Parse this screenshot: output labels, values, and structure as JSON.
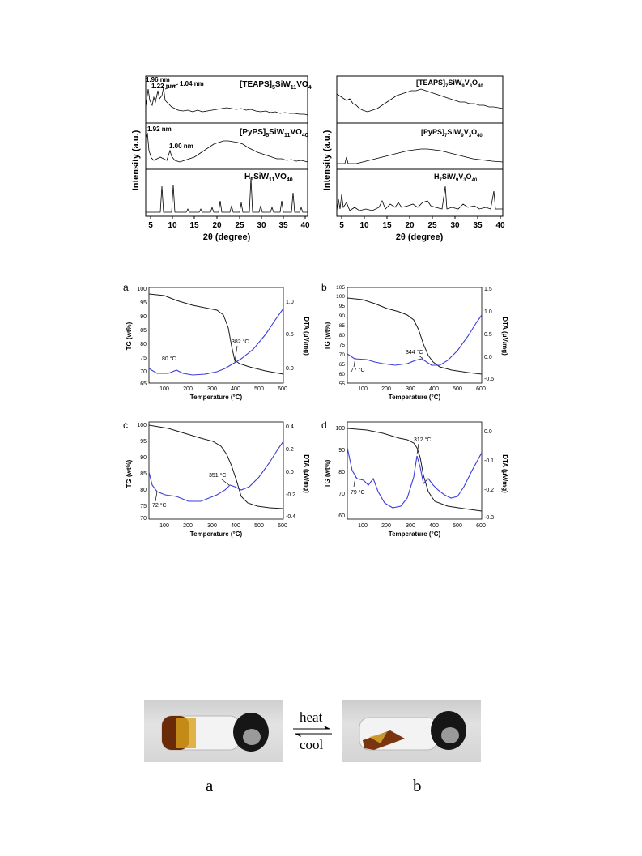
{
  "xrd": {
    "y_axis_label": "Intensity (a.u.)",
    "x_axis_label": "2θ (degree)",
    "left": {
      "x_ticks": [
        "5",
        "10",
        "15",
        "20",
        "25",
        "30",
        "35",
        "40"
      ],
      "panels": [
        {
          "label_main": "[TEAPS]",
          "label_sub1": "5",
          "label_mid": "SiW",
          "label_sub2": "11",
          "label_end": "VO",
          "label_sub3": "40",
          "annotations": [
            "1.96 nm",
            "1.22 nm",
            "1.04 nm"
          ]
        },
        {
          "label_main": "[PyPS]",
          "label_sub1": "5",
          "label_mid": "SiW",
          "label_sub2": "11",
          "label_end": "VO",
          "label_sub3": "40",
          "annotations": [
            "1.92 nm",
            "1.00 nm"
          ]
        },
        {
          "label_main": "H",
          "label_sub1": "5",
          "label_mid": "SiW",
          "label_sub2": "11",
          "label_end": "VO",
          "label_sub3": "40",
          "annotations": []
        }
      ]
    },
    "right": {
      "x_ticks": [
        "5",
        "10",
        "15",
        "20",
        "25",
        "30",
        "35",
        "40"
      ],
      "panels": [
        {
          "label_main": "[TEAPS]",
          "label_sub1": "7",
          "label_mid": "SiW",
          "label_sub2": "9",
          "label_end": "V",
          "label_sub3": "3",
          "label_end2": "O",
          "label_sub4": "40"
        },
        {
          "label_main": "[PyPS]",
          "label_sub1": "7",
          "label_mid": "SiW",
          "label_sub2": "9",
          "label_end": "V",
          "label_sub3": "3",
          "label_end2": "O",
          "label_sub4": "40"
        },
        {
          "label_main": "H",
          "label_sub1": "7",
          "label_mid": "SiW",
          "label_sub2": "9",
          "label_end": "V",
          "label_sub3": "3",
          "label_end2": "O",
          "label_sub4": "40"
        }
      ]
    }
  },
  "tga": {
    "x_axis_label": "Temperature (°C)",
    "y_left_label": "TG (wt%)",
    "y_right_label": "DTA (μV/mg)",
    "panels": [
      {
        "id": "a",
        "tg_ticks": [
          "100",
          "95",
          "90",
          "85",
          "80",
          "75",
          "70",
          "65"
        ],
        "dta_ticks": [
          "1.0",
          "0.5",
          "0.0"
        ],
        "x_ticks": [
          "100",
          "200",
          "300",
          "400",
          "500",
          "600"
        ],
        "annotations": [
          "80 °C",
          "382 °C"
        ]
      },
      {
        "id": "b",
        "tg_ticks": [
          "105",
          "100",
          "95",
          "90",
          "85",
          "80",
          "75",
          "70",
          "65",
          "60",
          "55"
        ],
        "dta_ticks": [
          "1.5",
          "1.0",
          "0.5",
          "0.0",
          "-0.5"
        ],
        "x_ticks": [
          "100",
          "200",
          "300",
          "400",
          "500",
          "600"
        ],
        "annotations": [
          "77 °C",
          "344 °C"
        ]
      },
      {
        "id": "c",
        "tg_ticks": [
          "100",
          "95",
          "90",
          "85",
          "80",
          "75",
          "70"
        ],
        "dta_ticks": [
          "0.4",
          "0.2",
          "0.0",
          "-0.2",
          "-0.4"
        ],
        "x_ticks": [
          "100",
          "200",
          "300",
          "400",
          "500",
          "600"
        ],
        "annotations": [
          "72 °C",
          "351 °C"
        ]
      },
      {
        "id": "d",
        "tg_ticks": [
          "100",
          "90",
          "80",
          "70",
          "60"
        ],
        "dta_ticks": [
          "0.0",
          "-0.1",
          "-0.2",
          "-0.3"
        ],
        "x_ticks": [
          "100",
          "200",
          "300",
          "400",
          "500",
          "600"
        ],
        "annotations": [
          "79 °C",
          "312 °C"
        ]
      }
    ],
    "colors": {
      "tg": "#1a1a1a",
      "dta": "#3b3bdc"
    }
  },
  "photos": {
    "arrow_top": "heat",
    "arrow_bottom": "cool",
    "caption_left": "a",
    "caption_right": "b"
  }
}
